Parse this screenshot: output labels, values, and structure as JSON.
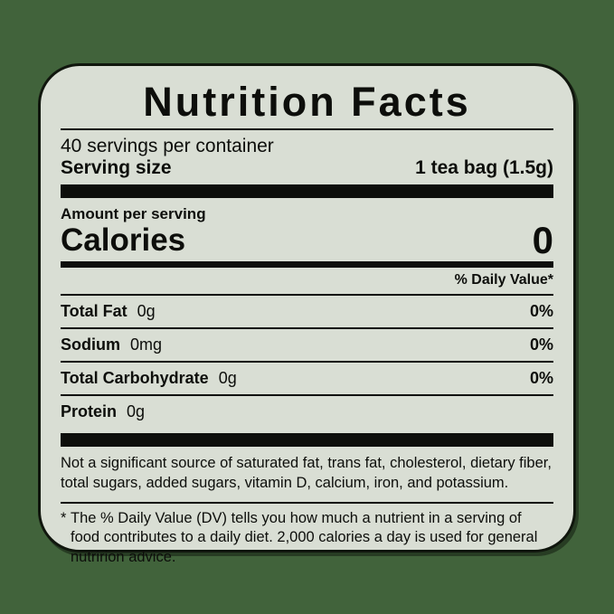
{
  "label": {
    "title": "Nutrition Facts",
    "servings_per_container": "40 servings per container",
    "serving_size_label": "Serving size",
    "serving_size_value": "1 tea bag (1.5g)",
    "amount_per_serving": "Amount per serving",
    "calories_label": "Calories",
    "calories_value": "0",
    "daily_value_header": "% Daily Value*",
    "nutrients": [
      {
        "name": "Total Fat",
        "amount": "0g",
        "dv": "0%"
      },
      {
        "name": "Sodium",
        "amount": "0mg",
        "dv": "0%"
      },
      {
        "name": "Total Carbohydrate",
        "amount": "0g",
        "dv": "0%"
      },
      {
        "name": "Protein",
        "amount": "0g",
        "dv": ""
      }
    ],
    "not_significant_note": "Not a significant source of saturated fat, trans fat, cholesterol, dietary fiber, total sugars, added sugars, vitamin D, calcium, iron, and potassium.",
    "footnote_marker": "*",
    "footnote_text": "The % Daily Value (DV) tells you how much a nutrient in a serving of food contributes to a daily diet. 2,000 calories a day is used for general nutririon advice."
  },
  "colors": {
    "background": "#41633b",
    "label_background": "#d9ded4",
    "ink": "#0d0e0b"
  }
}
